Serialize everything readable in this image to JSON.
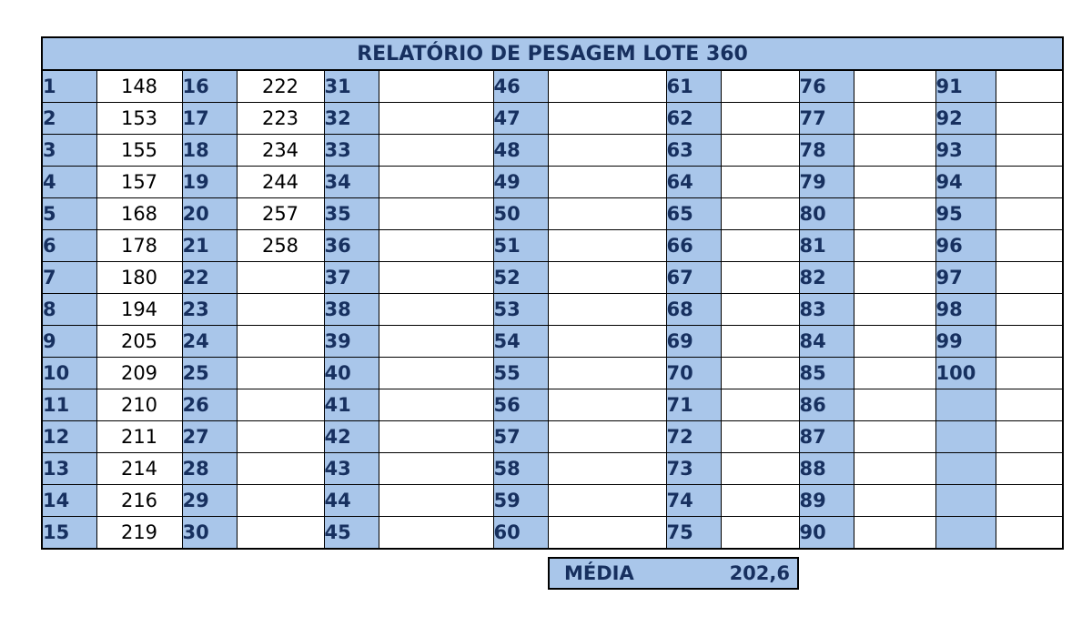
{
  "title": "RELATÓRIO DE PESAGEM LOTE 360",
  "rows": [
    [
      [
        "1",
        "148"
      ],
      [
        "16",
        "222"
      ],
      [
        "31",
        ""
      ],
      [
        "46",
        ""
      ],
      [
        "61",
        ""
      ],
      [
        "76",
        ""
      ],
      [
        "91",
        ""
      ]
    ],
    [
      [
        "2",
        "153"
      ],
      [
        "17",
        "223"
      ],
      [
        "32",
        ""
      ],
      [
        "47",
        ""
      ],
      [
        "62",
        ""
      ],
      [
        "77",
        ""
      ],
      [
        "92",
        ""
      ]
    ],
    [
      [
        "3",
        "155"
      ],
      [
        "18",
        "234"
      ],
      [
        "33",
        ""
      ],
      [
        "48",
        ""
      ],
      [
        "63",
        ""
      ],
      [
        "78",
        ""
      ],
      [
        "93",
        ""
      ]
    ],
    [
      [
        "4",
        "157"
      ],
      [
        "19",
        "244"
      ],
      [
        "34",
        ""
      ],
      [
        "49",
        ""
      ],
      [
        "64",
        ""
      ],
      [
        "79",
        ""
      ],
      [
        "94",
        ""
      ]
    ],
    [
      [
        "5",
        "168"
      ],
      [
        "20",
        "257"
      ],
      [
        "35",
        ""
      ],
      [
        "50",
        ""
      ],
      [
        "65",
        ""
      ],
      [
        "80",
        ""
      ],
      [
        "95",
        ""
      ]
    ],
    [
      [
        "6",
        "178"
      ],
      [
        "21",
        "258"
      ],
      [
        "36",
        ""
      ],
      [
        "51",
        ""
      ],
      [
        "66",
        ""
      ],
      [
        "81",
        ""
      ],
      [
        "96",
        ""
      ]
    ],
    [
      [
        "7",
        "180"
      ],
      [
        "22",
        ""
      ],
      [
        "37",
        ""
      ],
      [
        "52",
        ""
      ],
      [
        "67",
        ""
      ],
      [
        "82",
        ""
      ],
      [
        "97",
        ""
      ]
    ],
    [
      [
        "8",
        "194"
      ],
      [
        "23",
        ""
      ],
      [
        "38",
        ""
      ],
      [
        "53",
        ""
      ],
      [
        "68",
        ""
      ],
      [
        "83",
        ""
      ],
      [
        "98",
        ""
      ]
    ],
    [
      [
        "9",
        "205"
      ],
      [
        "24",
        ""
      ],
      [
        "39",
        ""
      ],
      [
        "54",
        ""
      ],
      [
        "69",
        ""
      ],
      [
        "84",
        ""
      ],
      [
        "99",
        ""
      ]
    ],
    [
      [
        "10",
        "209"
      ],
      [
        "25",
        ""
      ],
      [
        "40",
        ""
      ],
      [
        "55",
        ""
      ],
      [
        "70",
        ""
      ],
      [
        "85",
        ""
      ],
      [
        "100",
        ""
      ]
    ],
    [
      [
        "11",
        "210"
      ],
      [
        "26",
        ""
      ],
      [
        "41",
        ""
      ],
      [
        "56",
        ""
      ],
      [
        "71",
        ""
      ],
      [
        "86",
        ""
      ],
      [
        "",
        ""
      ]
    ],
    [
      [
        "12",
        "211"
      ],
      [
        "27",
        ""
      ],
      [
        "42",
        ""
      ],
      [
        "57",
        ""
      ],
      [
        "72",
        ""
      ],
      [
        "87",
        ""
      ],
      [
        "",
        ""
      ]
    ],
    [
      [
        "13",
        "214"
      ],
      [
        "28",
        ""
      ],
      [
        "43",
        ""
      ],
      [
        "58",
        ""
      ],
      [
        "73",
        ""
      ],
      [
        "88",
        ""
      ],
      [
        "",
        ""
      ]
    ],
    [
      [
        "14",
        "216"
      ],
      [
        "29",
        ""
      ],
      [
        "44",
        ""
      ],
      [
        "59",
        ""
      ],
      [
        "74",
        ""
      ],
      [
        "89",
        ""
      ],
      [
        "",
        ""
      ]
    ],
    [
      [
        "15",
        "219"
      ],
      [
        "30",
        ""
      ],
      [
        "45",
        ""
      ],
      [
        "60",
        ""
      ],
      [
        "75",
        ""
      ],
      [
        "90",
        ""
      ],
      [
        "",
        ""
      ]
    ]
  ],
  "media": {
    "label": "MÉDIA",
    "value": "202,6"
  },
  "colors": {
    "header_fill": "#a9c6ea",
    "header_text": "#17305f"
  }
}
